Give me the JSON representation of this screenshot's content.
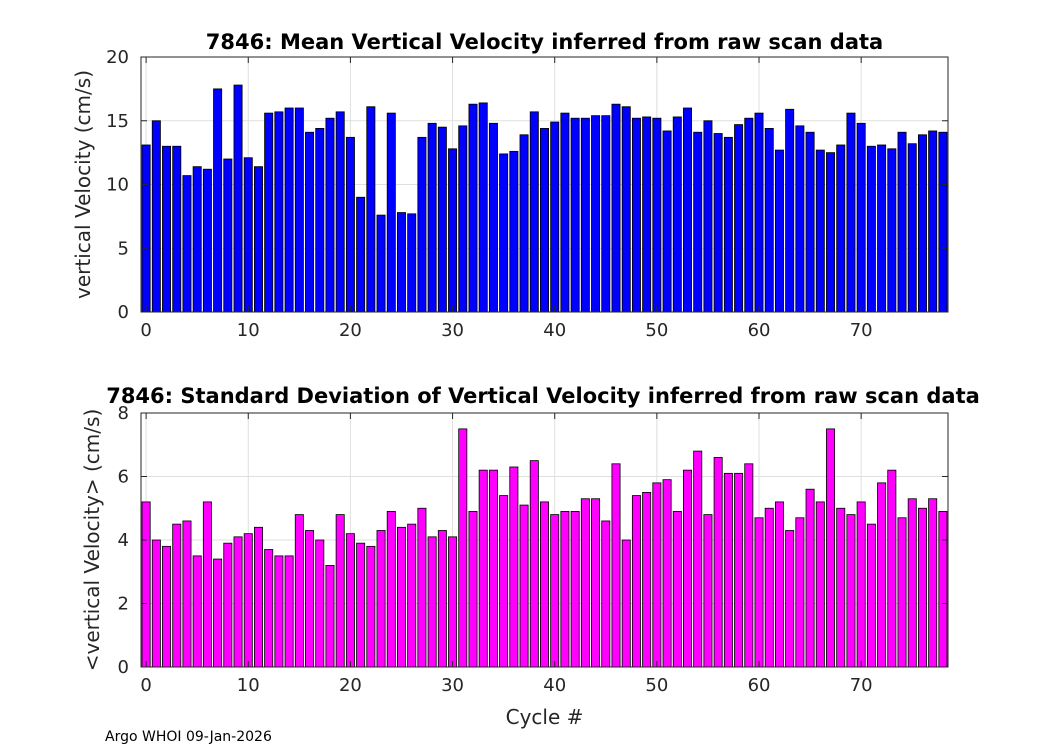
{
  "footer": "Argo WHOI 09-Jan-2026",
  "chart_data": [
    {
      "type": "bar",
      "title": "7846: Mean Vertical Velocity inferred from raw scan data",
      "xlabel": "",
      "ylabel": "vertical Velocity (cm/s)",
      "xlim": [
        -0.5,
        78.5
      ],
      "ylim": [
        0,
        20
      ],
      "xticks": [
        0,
        10,
        20,
        30,
        40,
        50,
        60,
        70
      ],
      "yticks": [
        0,
        5,
        10,
        15,
        20
      ],
      "grid": true,
      "color": "#0000ff",
      "x": [
        0,
        1,
        2,
        3,
        4,
        5,
        6,
        7,
        8,
        9,
        10,
        11,
        12,
        13,
        14,
        15,
        16,
        17,
        18,
        19,
        20,
        21,
        22,
        23,
        24,
        25,
        26,
        27,
        28,
        29,
        30,
        31,
        32,
        33,
        34,
        35,
        36,
        37,
        38,
        39,
        40,
        41,
        42,
        43,
        44,
        45,
        46,
        47,
        48,
        49,
        50,
        51,
        52,
        53,
        54,
        55,
        56,
        57,
        58,
        59,
        60,
        61,
        62,
        63,
        64,
        65,
        66,
        67,
        68,
        69,
        70,
        71,
        72,
        73,
        74,
        75,
        76,
        77,
        78
      ],
      "values": [
        13.1,
        15.0,
        13.0,
        13.0,
        10.7,
        11.4,
        11.2,
        17.5,
        12.0,
        17.8,
        12.1,
        11.4,
        15.6,
        15.7,
        16.0,
        16.0,
        14.1,
        14.4,
        15.2,
        15.7,
        13.7,
        9.0,
        16.1,
        7.6,
        15.6,
        7.8,
        7.7,
        13.7,
        14.8,
        14.5,
        12.8,
        14.6,
        16.3,
        16.4,
        14.8,
        12.4,
        12.6,
        13.9,
        15.7,
        14.4,
        14.9,
        15.6,
        15.2,
        15.2,
        15.4,
        15.4,
        16.3,
        16.1,
        15.2,
        15.3,
        15.2,
        14.2,
        15.3,
        16.0,
        14.1,
        15.0,
        14.0,
        13.7,
        14.7,
        15.2,
        15.6,
        14.4,
        12.7,
        15.9,
        14.6,
        14.1,
        12.7,
        12.5,
        13.1,
        15.6,
        14.8,
        13.0,
        13.1,
        12.8,
        14.1,
        13.2,
        13.9,
        14.2,
        14.1
      ]
    },
    {
      "type": "bar",
      "title": "7846: Standard Deviation of Vertical Velocity inferred from raw scan data",
      "xlabel": "Cycle #",
      "ylabel": "<vertical Velocity> (cm/s)",
      "xlim": [
        -0.5,
        78.5
      ],
      "ylim": [
        0,
        8
      ],
      "xticks": [
        0,
        10,
        20,
        30,
        40,
        50,
        60,
        70
      ],
      "yticks": [
        0,
        2,
        4,
        6,
        8
      ],
      "grid": true,
      "color": "#ff00ff",
      "x": [
        0,
        1,
        2,
        3,
        4,
        5,
        6,
        7,
        8,
        9,
        10,
        11,
        12,
        13,
        14,
        15,
        16,
        17,
        18,
        19,
        20,
        21,
        22,
        23,
        24,
        25,
        26,
        27,
        28,
        29,
        30,
        31,
        32,
        33,
        34,
        35,
        36,
        37,
        38,
        39,
        40,
        41,
        42,
        43,
        44,
        45,
        46,
        47,
        48,
        49,
        50,
        51,
        52,
        53,
        54,
        55,
        56,
        57,
        58,
        59,
        60,
        61,
        62,
        63,
        64,
        65,
        66,
        67,
        68,
        69,
        70,
        71,
        72,
        73,
        74,
        75,
        76,
        77,
        78
      ],
      "values": [
        5.2,
        4.0,
        3.8,
        4.5,
        4.6,
        3.5,
        5.2,
        3.4,
        3.9,
        4.1,
        4.2,
        4.4,
        3.7,
        3.5,
        3.5,
        4.8,
        4.3,
        4.0,
        3.2,
        4.8,
        4.2,
        3.9,
        3.8,
        4.3,
        4.9,
        4.4,
        4.5,
        5.0,
        4.1,
        4.3,
        4.1,
        7.5,
        4.9,
        6.2,
        6.2,
        5.4,
        6.3,
        5.1,
        6.5,
        5.2,
        4.8,
        4.9,
        4.9,
        5.3,
        5.3,
        4.6,
        6.4,
        4.0,
        5.4,
        5.5,
        5.8,
        5.9,
        4.9,
        6.2,
        6.8,
        4.8,
        6.6,
        6.1,
        6.1,
        6.4,
        4.7,
        5.0,
        5.2,
        4.3,
        4.7,
        5.6,
        5.2,
        7.5,
        5.0,
        4.8,
        5.2,
        4.5,
        5.8,
        6.2,
        4.7,
        5.3,
        5.0,
        5.3,
        4.9
      ]
    }
  ]
}
